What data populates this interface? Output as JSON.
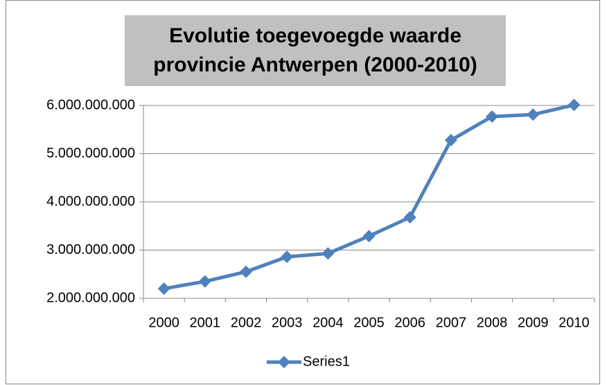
{
  "chart_data": {
    "type": "line",
    "title": "Evolutie toegevoegde waarde provincie Antwerpen (2000-2010)",
    "categories": [
      "2000",
      "2001",
      "2002",
      "2003",
      "2004",
      "2005",
      "2006",
      "2007",
      "2008",
      "2009",
      "2010"
    ],
    "series": [
      {
        "name": "Series1",
        "color": "#4f81bd",
        "values": [
          2200000000,
          2350000000,
          2550000000,
          2860000000,
          2930000000,
          3290000000,
          3680000000,
          5280000000,
          5770000000,
          5810000000,
          6010000000
        ]
      }
    ],
    "ylim": [
      2000000000,
      6000000000
    ],
    "yticks": [
      {
        "value": 2000000000,
        "label": "2.000.000.000"
      },
      {
        "value": 3000000000,
        "label": "3.000.000.000"
      },
      {
        "value": 4000000000,
        "label": "4.000.000.000"
      },
      {
        "value": 5000000000,
        "label": "5.000.000.000"
      },
      {
        "value": 6000000000,
        "label": "6.000.000.000"
      }
    ],
    "grid": true,
    "legend": "bottom"
  }
}
